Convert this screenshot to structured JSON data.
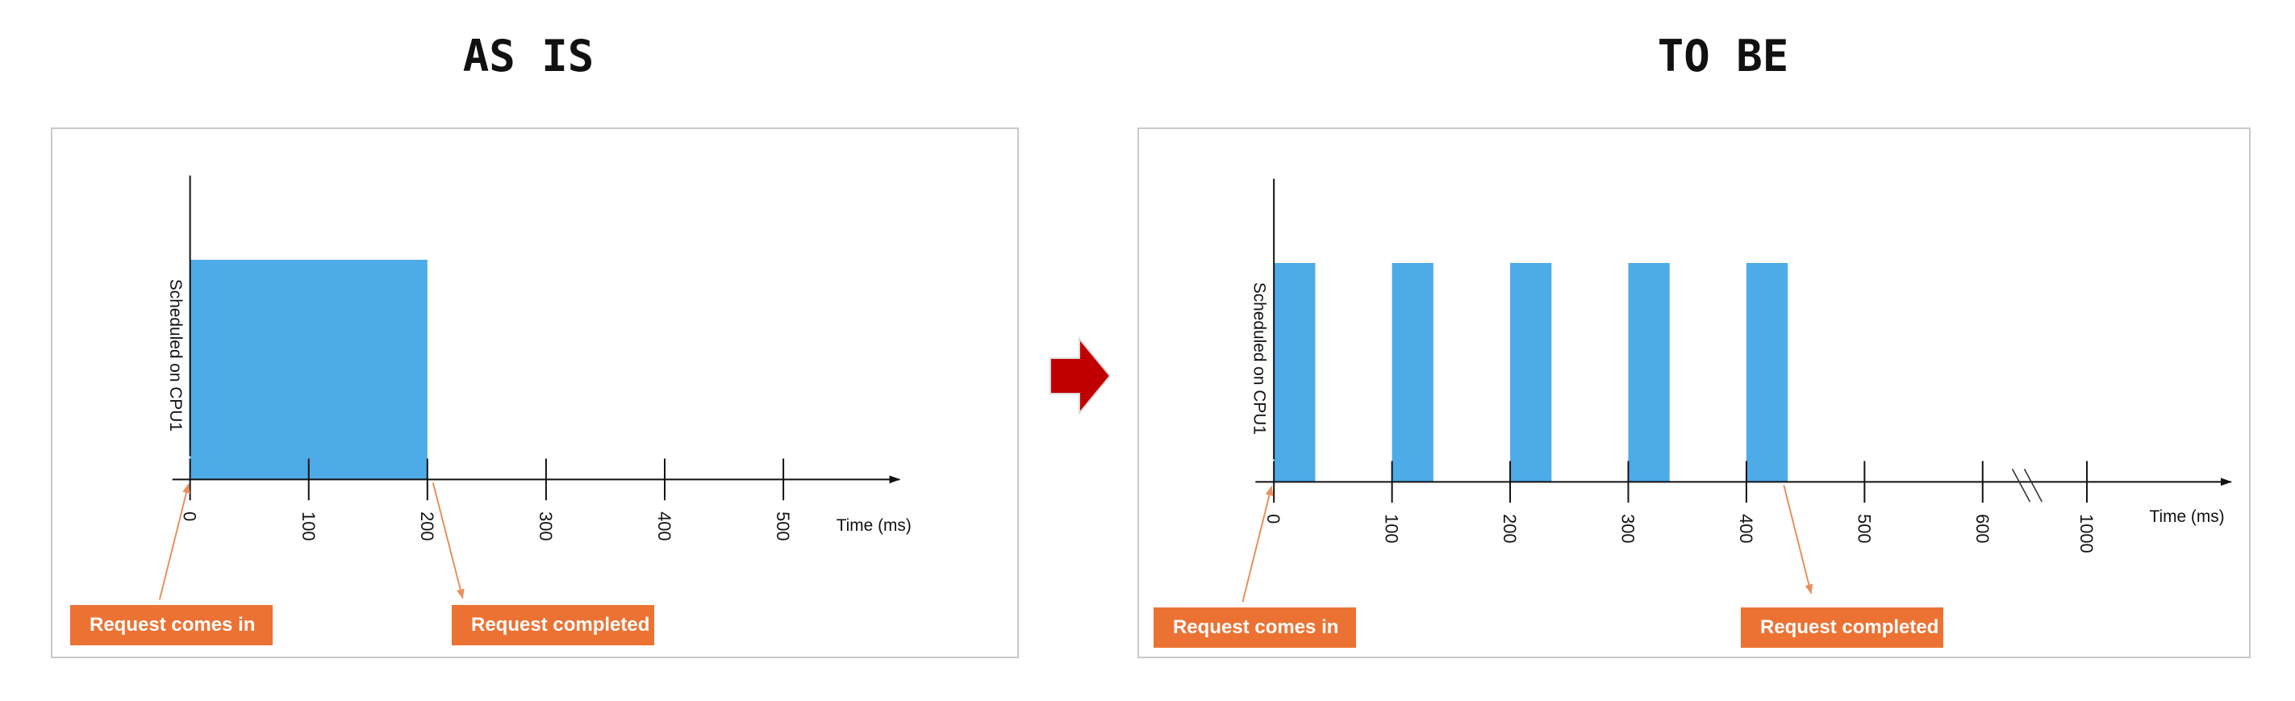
{
  "headings": {
    "left": "AS IS",
    "right": "TO BE"
  },
  "as_is": {
    "y_axis_label": "Scheduled on CPU1",
    "x_axis_label": "Time (ms)",
    "ticks": [
      "0",
      "100",
      "200",
      "300",
      "400",
      "500"
    ],
    "tick_values": [
      0,
      100,
      200,
      300,
      400,
      500
    ],
    "busy_intervals_ms": [
      [
        0,
        200
      ]
    ],
    "request_in_label": "Request comes in",
    "request_in_ms": 0,
    "request_done_label": "Request completed",
    "request_done_ms": 200
  },
  "to_be": {
    "y_axis_label": "Scheduled on CPU1",
    "x_axis_label": "Time (ms)",
    "ticks": [
      "0",
      "100",
      "200",
      "300",
      "400",
      "500",
      "600",
      "1000"
    ],
    "tick_values": [
      0,
      100,
      200,
      300,
      400,
      500,
      600,
      1000
    ],
    "axis_break_between": [
      "600",
      "1000"
    ],
    "busy_intervals_ms": [
      [
        0,
        35
      ],
      [
        100,
        135
      ],
      [
        200,
        235
      ],
      [
        300,
        335
      ],
      [
        400,
        435
      ]
    ],
    "request_in_label": "Request comes in",
    "request_in_ms": 0,
    "request_done_label": "Request completed",
    "request_done_ms": 435
  },
  "colors": {
    "bar": "#4dabe8",
    "callout": "#ec7233",
    "arrow": "#c00000",
    "axis": "#111111",
    "leader": "#e8905c"
  },
  "icons": {
    "transition": "right-arrow-icon"
  }
}
